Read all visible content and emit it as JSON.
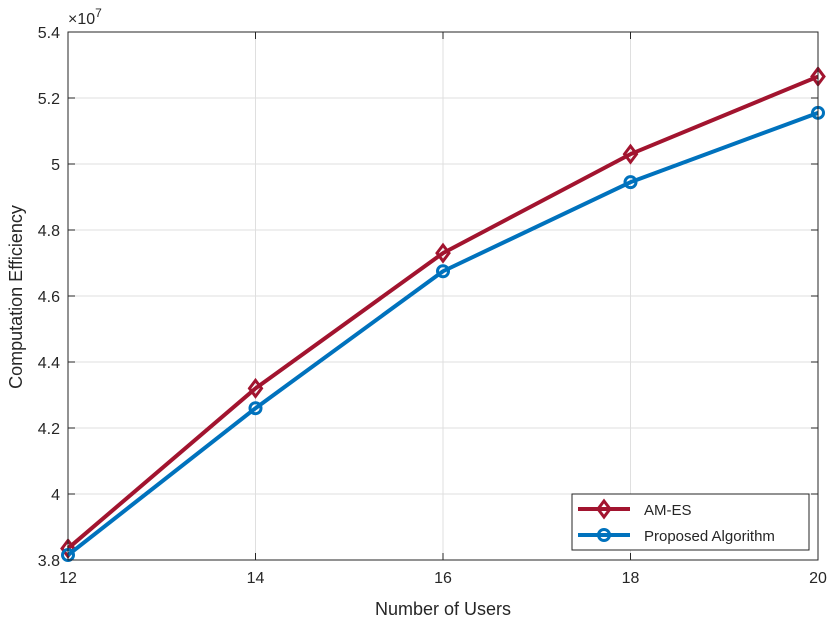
{
  "chart_data": {
    "type": "line",
    "title": "",
    "xlabel": "Number of Users",
    "ylabel": "Computation Efficiency",
    "y_exponent_label": "×10",
    "y_exponent_power": "7",
    "xlim": [
      12,
      20
    ],
    "ylim": [
      3.8,
      5.4
    ],
    "x_ticks": [
      12,
      14,
      16,
      18,
      20
    ],
    "x_tick_labels": [
      "12",
      "14",
      "16",
      "18",
      "20"
    ],
    "y_ticks": [
      3.8,
      4.0,
      4.2,
      4.4,
      4.6,
      4.8,
      5.0,
      5.2,
      5.4
    ],
    "y_tick_labels": [
      "3.8",
      "4",
      "4.2",
      "4.4",
      "4.6",
      "4.8",
      "5",
      "5.2",
      "5.4"
    ],
    "grid": true,
    "legend_position": "bottom-right",
    "x": [
      12,
      14,
      16,
      18,
      20
    ],
    "series": [
      {
        "name": "AM-ES",
        "values": [
          3.835,
          4.32,
          4.73,
          5.03,
          5.265
        ],
        "color": "#A2142F",
        "marker": "diamond"
      },
      {
        "name": "Proposed Algorithm",
        "values": [
          3.815,
          4.26,
          4.675,
          4.945,
          5.155
        ],
        "color": "#0072BD",
        "marker": "circle"
      }
    ]
  }
}
